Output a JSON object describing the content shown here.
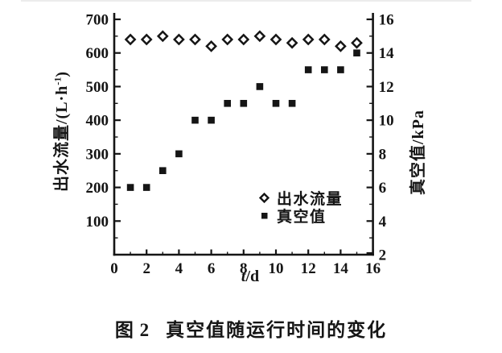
{
  "figure": {
    "caption_label": "图 2",
    "caption_text": "真空值随运行时间的变化"
  },
  "chart_data": {
    "type": "scatter",
    "title": "图 2 真空值随运行时间的变化",
    "x": [
      1,
      2,
      3,
      4,
      5,
      6,
      7,
      8,
      9,
      10,
      11,
      12,
      13,
      14,
      15
    ],
    "series": [
      {
        "name": "出水流量",
        "axis": "left",
        "marker": "open-diamond",
        "values": [
          640,
          640,
          650,
          640,
          640,
          620,
          640,
          640,
          650,
          640,
          630,
          640,
          640,
          620,
          630
        ]
      },
      {
        "name": "真空值",
        "axis": "right",
        "marker": "filled-square",
        "values": [
          6,
          6,
          7,
          8,
          10,
          10,
          11,
          11,
          12,
          11,
          11,
          13,
          13,
          13,
          14
        ]
      }
    ],
    "x_axis": {
      "label_var": "t",
      "label_unit": "/d",
      "range": [
        0,
        16
      ],
      "ticks": [
        0,
        2,
        4,
        6,
        8,
        10,
        12,
        14,
        16
      ]
    },
    "left_axis": {
      "title_prefix": "出水流量/(L·h",
      "title_sup": "-1",
      "title_suffix": ")",
      "range": [
        0,
        700
      ],
      "ticks": [
        100,
        200,
        300,
        400,
        500,
        600,
        700
      ]
    },
    "right_axis": {
      "title": "真空值/kPa",
      "range": [
        2,
        16
      ],
      "ticks": [
        2,
        4,
        6,
        8,
        10,
        12,
        14,
        16
      ]
    },
    "legend": {
      "position": "inside-bottom-right",
      "items": [
        {
          "marker": "open-diamond",
          "label": "出水流量"
        },
        {
          "marker": "filled-square",
          "label": "真空值"
        }
      ]
    },
    "grid": false,
    "colors": {
      "ink": "#151515",
      "paper": "#ffffff"
    }
  }
}
